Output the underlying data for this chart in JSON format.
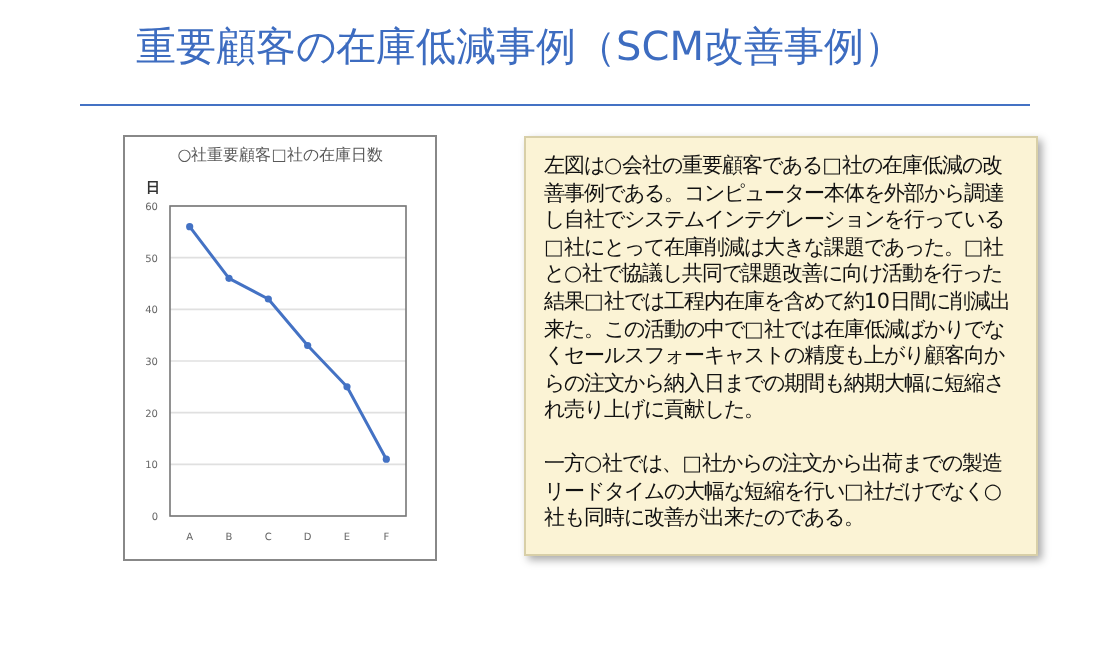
{
  "chart_data": [
    {
      "type": "other",
      "title": "重要顧客の在庫低減事例（SCM改善事例）"
    },
    {
      "type": "line",
      "title": "○社重要顧客□社の在庫日数",
      "ylabel": "日",
      "categories": [
        "A",
        "B",
        "C",
        "D",
        "E",
        "F"
      ],
      "series": [
        {
          "color": "#4472c4",
          "values": [
            56,
            46,
            42,
            33,
            25,
            11
          ]
        }
      ],
      "ylim": [
        0,
        60
      ],
      "yticks": [
        0,
        10,
        20,
        30,
        40,
        50,
        60
      ],
      "grid": "y",
      "marker": "circle",
      "line_style": "solid"
    },
    {
      "type": "other",
      "annotations": [
        "左図は○会社の重要顧客である□社の在庫低減の改善事例である。コンピューター本体を外部から調達し自社でシステムインテグレーションを行っている□社にとって在庫削減は大きな課題であった。□社と○社で協議し共同で課題改善に向け活動を行った結果□社では工程内在庫を含めて約10日間に削減出来た。この活動の中で□社では在庫低減ばかりでなくセールスフォーキャストの精度も上がり顧客向からの注文から納入日までの期間も納期大幅に短縮され売り上げに貢献した。",
        "一方○社では、□社からの注文から出荷までの製造リードタイムの大幅な短縮を行い□社だけでなく○社も同時に改善が出来たのである。"
      ]
    }
  ]
}
